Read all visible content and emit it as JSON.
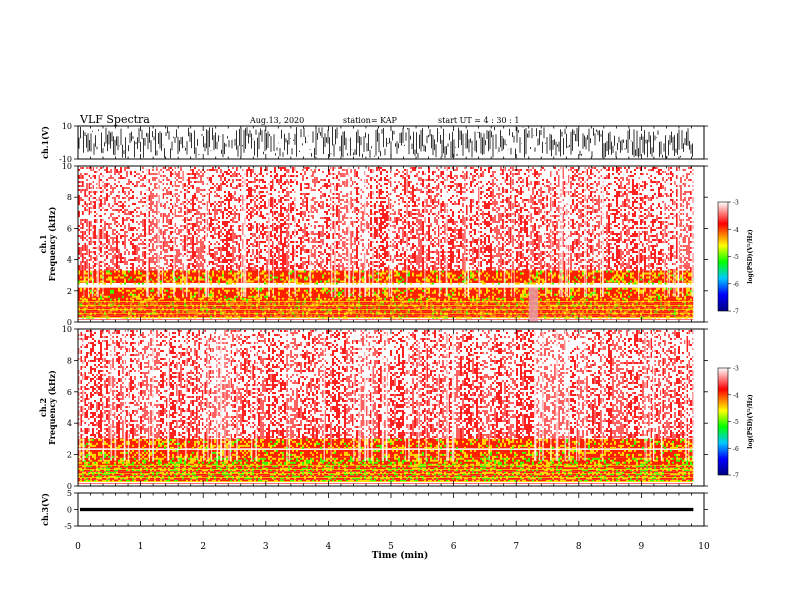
{
  "header": {
    "title": "VLF Spectra",
    "date": "Aug.13, 2020",
    "station": "station= KAP",
    "start": "start  UT  =   4 : 30 : 1"
  },
  "chart_data": [
    {
      "type": "line",
      "panel": "ch1-waveform",
      "ylabel": "ch.1(V)",
      "ylim": [
        -10,
        10
      ],
      "yticks": [
        "10",
        "-10"
      ],
      "xlim": [
        0,
        10
      ],
      "x_data_end": 9.83,
      "color": "#000000"
    },
    {
      "type": "heatmap",
      "panel": "ch1-spectrogram",
      "ylabel": "ch.1\nFrequency  (kHz)",
      "ylim": [
        0,
        10
      ],
      "yticks": [
        "0",
        "2",
        "4",
        "6",
        "8",
        "10"
      ],
      "xlim": [
        0,
        10
      ],
      "x_data_end": 9.83,
      "colorbar": {
        "label": "log(PSD)(V²/Hz)",
        "range": [
          -7,
          -3
        ],
        "ticks": [
          "-3",
          "-4",
          "-5",
          "-6",
          "-7"
        ],
        "colors": [
          "#000080",
          "#0000ff",
          "#00c8ff",
          "#00ff00",
          "#ffff00",
          "#ff0000",
          "#ffffff"
        ]
      },
      "enhanced_bands_kHz": [
        [
          0.3,
          1.5
        ],
        [
          1.5,
          2.2
        ],
        [
          2.5,
          3.3
        ]
      ],
      "quiet_segment_min": [
        7.2,
        7.35
      ]
    },
    {
      "type": "heatmap",
      "panel": "ch2-spectrogram",
      "ylabel": "ch.2\nFrequency  (kHz)",
      "ylim": [
        0,
        10
      ],
      "yticks": [
        "0",
        "2",
        "4",
        "6",
        "8",
        "10"
      ],
      "xlim": [
        0,
        10
      ],
      "x_data_end": 9.83,
      "colorbar": {
        "label": "log(PSD)(V²/Hz)",
        "range": [
          -7,
          -3
        ],
        "ticks": [
          "-3",
          "-4",
          "-5",
          "-6",
          "-7"
        ],
        "colors": [
          "#000080",
          "#0000ff",
          "#00c8ff",
          "#00ff00",
          "#ffff00",
          "#ff0000",
          "#ffffff"
        ]
      },
      "enhanced_bands_kHz": [
        [
          0.3,
          1.8
        ],
        [
          1.8,
          2.3
        ],
        [
          2.4,
          3.0
        ]
      ]
    },
    {
      "type": "line",
      "panel": "ch3-waveform",
      "ylabel": "ch.3(V)",
      "ylim": [
        -5,
        5
      ],
      "yticks": [
        "5",
        "0",
        "-5"
      ],
      "xlim": [
        0,
        10
      ],
      "x_data_end": 9.83,
      "signal_band_V": [
        -0.5,
        0.5
      ],
      "color": "#000000"
    }
  ],
  "xaxis": {
    "label": "Time  (min)",
    "ticks": [
      "0",
      "1",
      "2",
      "3",
      "4",
      "5",
      "6",
      "7",
      "8",
      "9",
      "10"
    ]
  }
}
